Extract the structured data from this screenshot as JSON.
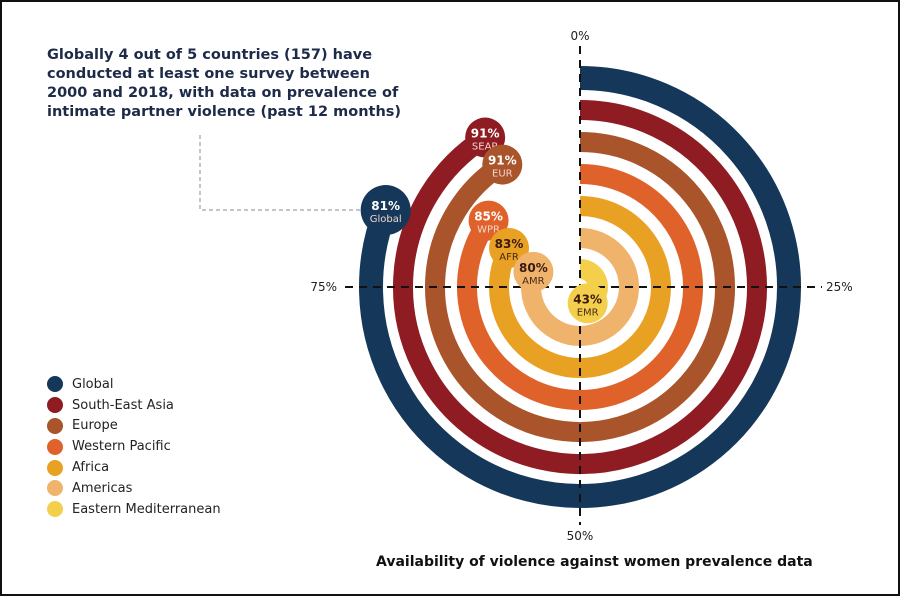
{
  "headline": "Globally 4 out of 5 countries (157) have conducted at least one survey between 2000 and 2018, with data on prevalence of intimate partner violence (past 12 months)",
  "chart_data": {
    "type": "radial-bar",
    "title": "Availability of violence against women prevalence data",
    "axis_ticks": [
      "0%",
      "25%",
      "50%",
      "75%"
    ],
    "range": [
      0,
      100
    ],
    "series": [
      {
        "name": "Global",
        "code": "Global",
        "value": 81,
        "color": "#14375a"
      },
      {
        "name": "South-East Asia",
        "code": "SEAR",
        "value": 91,
        "color": "#8e1c22"
      },
      {
        "name": "Europe",
        "code": "EUR",
        "value": 91,
        "color": "#a9542a"
      },
      {
        "name": "Western Pacific",
        "code": "WPR",
        "value": 85,
        "color": "#e0622b"
      },
      {
        "name": "Africa",
        "code": "AFR",
        "value": 83,
        "color": "#e9a124"
      },
      {
        "name": "Americas",
        "code": "AMR",
        "value": 80,
        "color": "#efb36b"
      },
      {
        "name": "Eastern Mediterranean",
        "code": "EMR",
        "value": 43,
        "color": "#f3cf4c"
      }
    ],
    "legend": "bottom-left"
  }
}
